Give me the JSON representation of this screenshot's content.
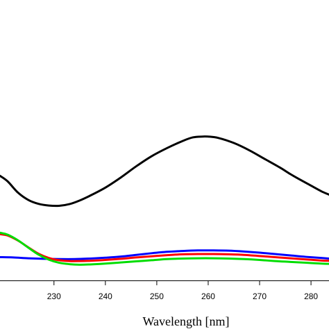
{
  "chart_data": {
    "type": "line",
    "title": "",
    "xlabel": "Wavelength [nm]",
    "ylabel": "",
    "xlim": [
      219.5,
      283.5
    ],
    "ylim": [
      0,
      1
    ],
    "x_ticks": [
      230,
      240,
      250,
      260,
      270,
      280
    ],
    "x_tick_labels": [
      "230",
      "240",
      "250",
      "260",
      "270",
      "280"
    ],
    "grid": false,
    "legend": "none",
    "series": [
      {
        "color": "#000000",
        "x": [
          219.5,
          221,
          223,
          225,
          227,
          229,
          231,
          233,
          235,
          237,
          240,
          243,
          246,
          249,
          252,
          255,
          257,
          259,
          260,
          262,
          265,
          268,
          271,
          274,
          276,
          278,
          280,
          282,
          283.5
        ],
        "y": [
          0.373,
          0.353,
          0.313,
          0.287,
          0.273,
          0.267,
          0.266,
          0.272,
          0.285,
          0.302,
          0.331,
          0.367,
          0.407,
          0.443,
          0.472,
          0.497,
          0.51,
          0.513,
          0.513,
          0.508,
          0.49,
          0.464,
          0.433,
          0.402,
          0.379,
          0.358,
          0.338,
          0.318,
          0.306
        ]
      },
      {
        "color": "#0000ff",
        "x": [
          219.5,
          222,
          225,
          228,
          231,
          234,
          237,
          240,
          243,
          246,
          249,
          252,
          255,
          258,
          261,
          264,
          267,
          270,
          273,
          276,
          279,
          282,
          283.5
        ],
        "y": [
          0.083,
          0.082,
          0.079,
          0.077,
          0.076,
          0.076,
          0.078,
          0.081,
          0.085,
          0.091,
          0.097,
          0.102,
          0.105,
          0.107,
          0.107,
          0.106,
          0.103,
          0.099,
          0.094,
          0.089,
          0.084,
          0.08,
          0.078
        ]
      },
      {
        "color": "#ff0000",
        "x": [
          219.5,
          221,
          223,
          225,
          227,
          229,
          231,
          233,
          235,
          237,
          240,
          243,
          246,
          249,
          252,
          255,
          258,
          261,
          264,
          267,
          270,
          273,
          276,
          279,
          282,
          283.5
        ],
        "y": [
          0.165,
          0.16,
          0.142,
          0.118,
          0.095,
          0.08,
          0.072,
          0.069,
          0.069,
          0.07,
          0.073,
          0.077,
          0.082,
          0.086,
          0.09,
          0.093,
          0.094,
          0.094,
          0.093,
          0.091,
          0.087,
          0.083,
          0.079,
          0.075,
          0.071,
          0.07
        ]
      },
      {
        "color": "#00dd00",
        "x": [
          219.5,
          221,
          223,
          225,
          227,
          229,
          231,
          233,
          235,
          237,
          240,
          243,
          246,
          249,
          252,
          255,
          258,
          261,
          264,
          267,
          270,
          273,
          276,
          279,
          282,
          283.5
        ],
        "y": [
          0.17,
          0.163,
          0.143,
          0.117,
          0.092,
          0.074,
          0.063,
          0.058,
          0.056,
          0.057,
          0.06,
          0.064,
          0.068,
          0.072,
          0.076,
          0.078,
          0.079,
          0.079,
          0.078,
          0.076,
          0.073,
          0.069,
          0.066,
          0.063,
          0.06,
          0.059
        ]
      }
    ]
  }
}
